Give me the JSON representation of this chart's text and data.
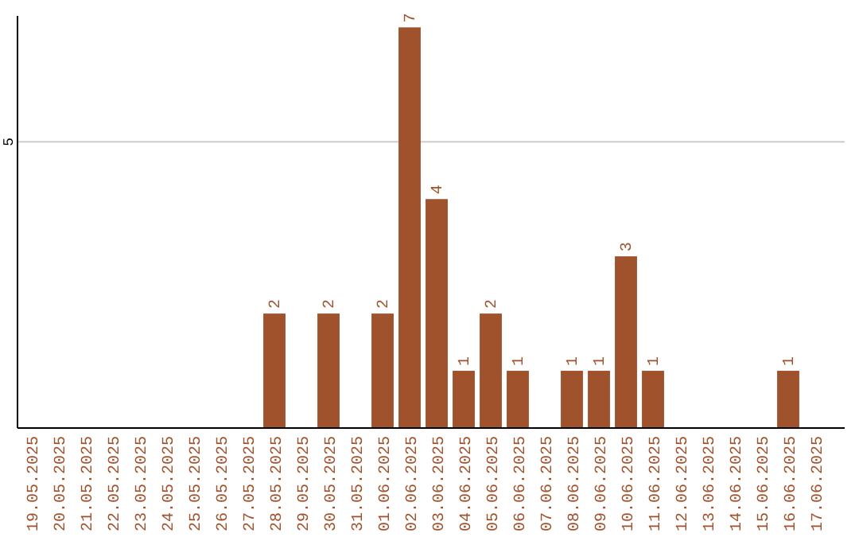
{
  "chart_data": {
    "type": "bar",
    "categories": [
      "19.05.2025",
      "20.05.2025",
      "21.05.2025",
      "22.05.2025",
      "23.05.2025",
      "24.05.2025",
      "25.05.2025",
      "26.05.2025",
      "27.05.2025",
      "28.05.2025",
      "29.05.2025",
      "30.05.2025",
      "31.05.2025",
      "01.06.2025",
      "02.06.2025",
      "03.06.2025",
      "04.06.2025",
      "05.06.2025",
      "06.06.2025",
      "07.06.2025",
      "08.06.2025",
      "09.06.2025",
      "10.06.2025",
      "11.06.2025",
      "12.06.2025",
      "13.06.2025",
      "14.06.2025",
      "15.06.2025",
      "16.06.2025",
      "17.06.2025"
    ],
    "values": [
      0,
      0,
      0,
      0,
      0,
      0,
      0,
      0,
      0,
      2,
      0,
      2,
      0,
      2,
      7,
      4,
      1,
      2,
      1,
      0,
      1,
      1,
      3,
      1,
      0,
      0,
      0,
      0,
      1,
      0
    ],
    "value_labels": [
      null,
      null,
      null,
      null,
      null,
      null,
      null,
      null,
      null,
      "2",
      null,
      "2",
      null,
      "2",
      "7",
      "4",
      "1",
      "2",
      "1",
      null,
      "1",
      "1",
      "3",
      "1",
      null,
      null,
      null,
      null,
      "1",
      null
    ],
    "color": "#a0522d",
    "ylim": [
      0,
      7.2
    ],
    "yticks": [
      5
    ],
    "grid": "y"
  }
}
